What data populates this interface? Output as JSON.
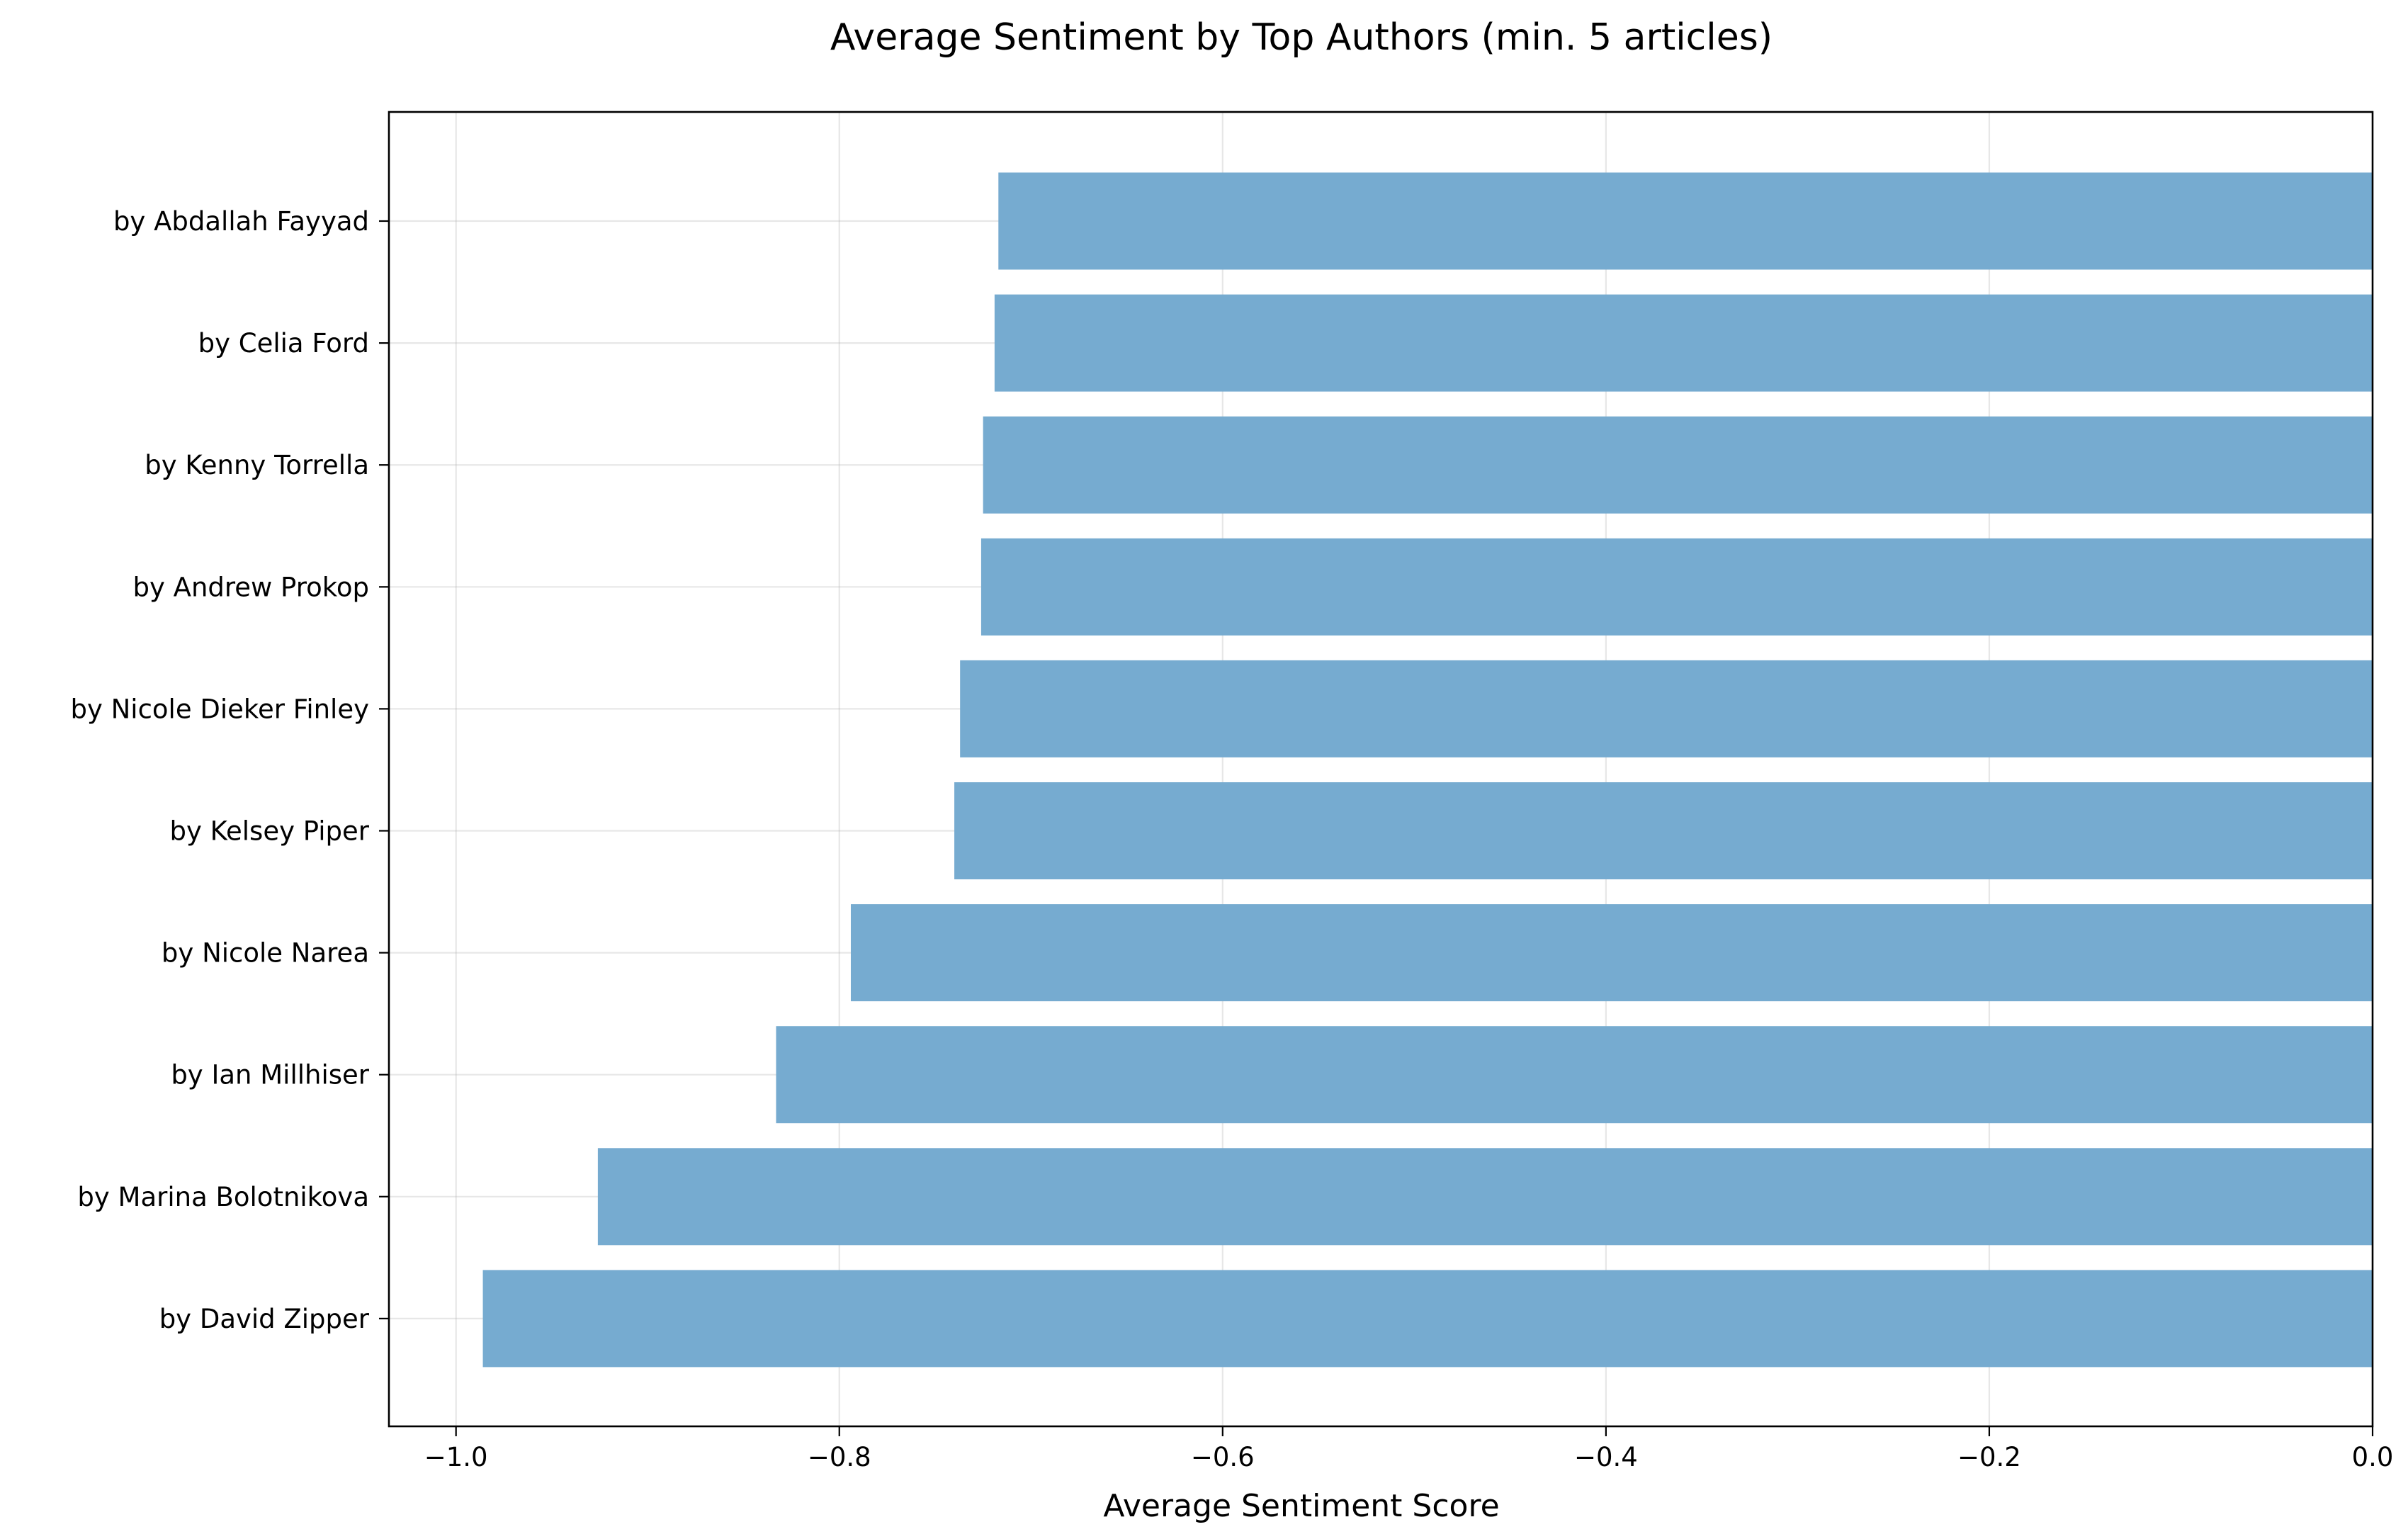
{
  "chart_data": {
    "type": "bar",
    "orientation": "horizontal",
    "title": "Average Sentiment by Top Authors (min. 5 articles)",
    "xlabel": "Average Sentiment Score",
    "ylabel": "",
    "xlim": [
      -1.035,
      0
    ],
    "x_ticks": [
      -1.0,
      -0.8,
      -0.6,
      -0.4,
      -0.2,
      0.0
    ],
    "x_tick_labels": [
      "−1.0",
      "−0.8",
      "−0.6",
      "−0.4",
      "−0.2",
      "0.0"
    ],
    "grid": true,
    "bar_color": "#76abd0",
    "categories": [
      "by  Abdallah Fayyad",
      "by  Celia Ford",
      "by  Kenny Torrella",
      "by  Andrew Prokop",
      "by  Nicole Dieker Finley",
      "by  Kelsey Piper",
      "by  Nicole Narea",
      "by  Ian Millhiser",
      "by  Marina Bolotnikova",
      "by  David Zipper"
    ],
    "values": [
      -0.717,
      -0.719,
      -0.725,
      -0.726,
      -0.737,
      -0.74,
      -0.794,
      -0.833,
      -0.926,
      -0.986
    ]
  }
}
